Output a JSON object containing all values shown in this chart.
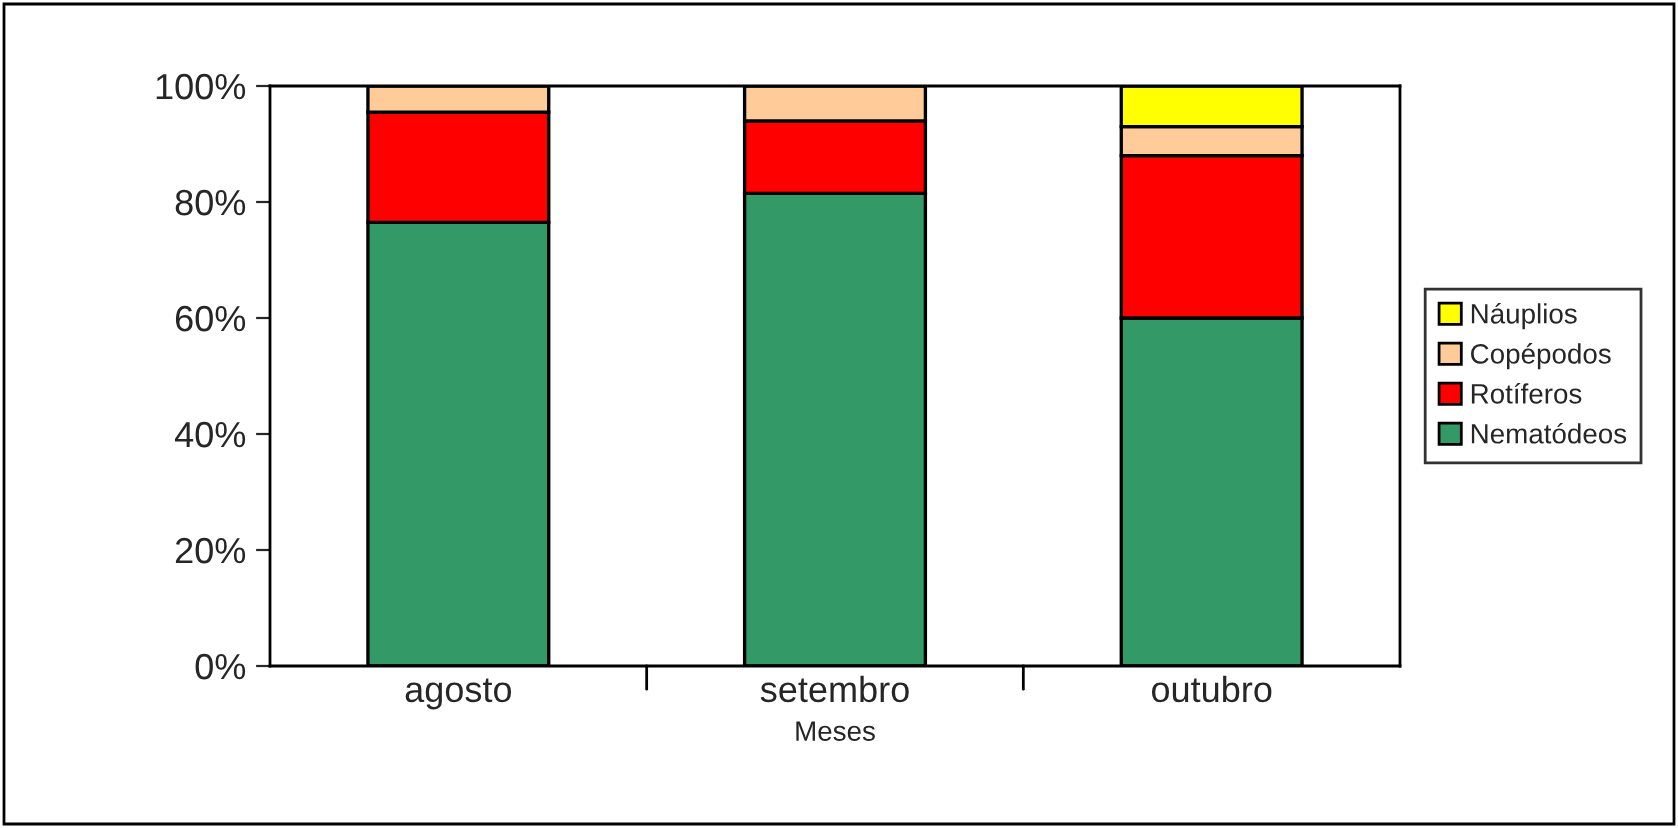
{
  "chart_data": {
    "type": "bar",
    "stacked": true,
    "xlabel": "Meses",
    "categories": [
      "agosto",
      "setembro",
      "outubro"
    ],
    "series": [
      {
        "name": "Nematódeos",
        "color": "#339966",
        "values": [
          76.5,
          81.5,
          60
        ]
      },
      {
        "name": "Rotíferos",
        "color": "#ff0000",
        "values": [
          19,
          12.5,
          28
        ]
      },
      {
        "name": "Copépodos",
        "color": "#ffcc99",
        "values": [
          4.5,
          6,
          5
        ]
      },
      {
        "name": "Náuplios",
        "color": "#ffff00",
        "values": [
          null,
          null,
          7
        ]
      }
    ],
    "ylim": [
      0,
      100
    ],
    "yticks": [
      {
        "value": 0,
        "label": "0%"
      },
      {
        "value": 20,
        "label": "20%"
      },
      {
        "value": 40,
        "label": "40%"
      },
      {
        "value": 60,
        "label": "60%"
      },
      {
        "value": 80,
        "label": "80%"
      },
      {
        "value": 100,
        "label": "100%"
      }
    ],
    "grid": false,
    "legend": "right"
  }
}
